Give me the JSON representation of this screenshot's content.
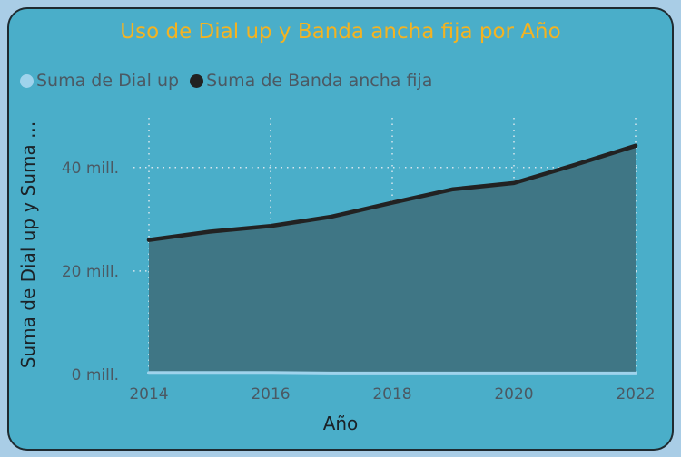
{
  "chart_data": {
    "type": "area",
    "title": "Uso de Dial up y Banda ancha fija por Año",
    "xlabel": "Año",
    "ylabel": "Suma de Dial up y Suma ...",
    "x": [
      2014,
      2015,
      2016,
      2017,
      2018,
      2019,
      2020,
      2021,
      2022
    ],
    "x_ticks": [
      "2014",
      "2016",
      "2018",
      "2020",
      "2022"
    ],
    "y_ticks": [
      "0 mill.",
      "20 mill.",
      "40 mill."
    ],
    "ylim": [
      0,
      50
    ],
    "xlim": [
      2014,
      2022
    ],
    "series": [
      {
        "name": "Suma de Dial up",
        "color": "#9fd3ec",
        "values": [
          0.3,
          0.3,
          0.3,
          0.2,
          0.2,
          0.2,
          0.2,
          0.2,
          0.2
        ]
      },
      {
        "name": "Suma de Banda ancha fija",
        "color": "#222222",
        "values": [
          26,
          27.6,
          28.7,
          30.5,
          33.2,
          35.8,
          37.0,
          40.5,
          44.2
        ]
      }
    ],
    "area_color": "#3f7685",
    "grid": true,
    "legend_position": "top-left"
  }
}
